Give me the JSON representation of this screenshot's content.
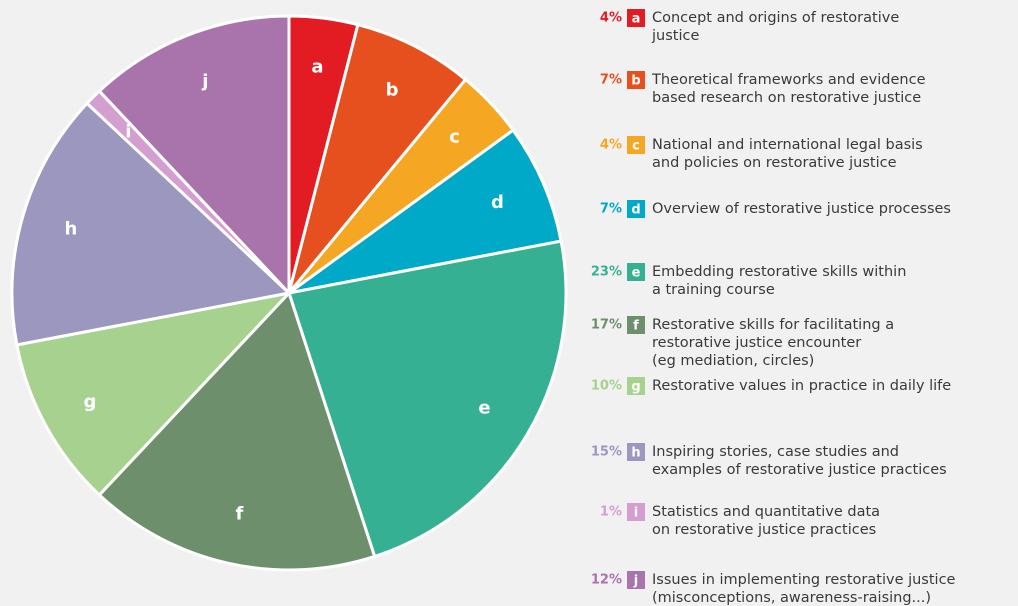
{
  "chart_data": {
    "type": "pie",
    "categories": [
      "a",
      "b",
      "c",
      "d",
      "e",
      "f",
      "g",
      "h",
      "i",
      "j"
    ],
    "values": [
      4,
      7,
      4,
      7,
      23,
      17,
      10,
      15,
      1,
      12
    ],
    "value_labels": [
      "4%",
      "7%",
      "4%",
      "7%",
      "23%",
      "17%",
      "10%",
      "15%",
      "1%",
      "12%"
    ],
    "colors": [
      "#e31b23",
      "#e5501e",
      "#f5a623",
      "#00a9c8",
      "#36b093",
      "#6d8f6c",
      "#a6d18f",
      "#9b97bf",
      "#d59ed0",
      "#a974ab"
    ],
    "labels": [
      [
        "Concept and origins of restorative",
        "justice"
      ],
      [
        "Theoretical frameworks and evidence",
        "based research on restorative justice"
      ],
      [
        "National and international legal basis",
        "and policies on restorative justice"
      ],
      [
        "Overview of restorative justice processes"
      ],
      [
        "Embedding restorative skills within",
        "a training course"
      ],
      [
        "Restorative skills for facilitating a",
        "restorative justice encounter",
        "(eg mediation, circles)"
      ],
      [
        "Restorative values in practice in daily life"
      ],
      [
        "Inspiring stories, case studies and",
        "examples of restorative justice practices"
      ],
      [
        "Statistics and quantitative data",
        "on restorative justice practices"
      ],
      [
        "Issues in implementing restorative justice",
        "(misconceptions, awareness-raising...)"
      ]
    ]
  }
}
